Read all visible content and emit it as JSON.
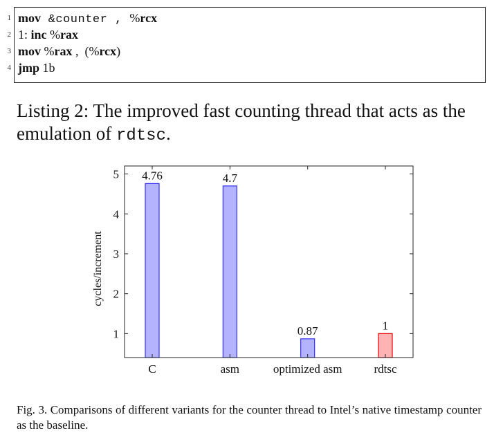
{
  "listing": {
    "lines": [
      {
        "num": "1",
        "parts": [
          {
            "text": "mov",
            "style": "kw"
          },
          {
            "text": " &counter , ",
            "style": "mono-light"
          },
          {
            "text": "%",
            "style": "plain"
          },
          {
            "text": "rcx",
            "style": "kw"
          }
        ]
      },
      {
        "num": "2",
        "parts": [
          {
            "text": "1: ",
            "style": "plain"
          },
          {
            "text": "inc",
            "style": "kw"
          },
          {
            "text": " %",
            "style": "plain"
          },
          {
            "text": "rax",
            "style": "kw"
          }
        ]
      },
      {
        "num": "3",
        "parts": [
          {
            "text": "mov",
            "style": "kw"
          },
          {
            "text": " %",
            "style": "plain"
          },
          {
            "text": "rax",
            "style": "kw"
          },
          {
            "text": " ,  (%",
            "style": "plain"
          },
          {
            "text": "rcx",
            "style": "kw"
          },
          {
            "text": ")",
            "style": "plain"
          }
        ]
      },
      {
        "num": "4",
        "parts": [
          {
            "text": "jmp",
            "style": "kw"
          },
          {
            "text": " 1b",
            "style": "plain"
          }
        ]
      }
    ],
    "caption_prefix": "Listing 2: The improved fast counting thread that acts as the emulation of ",
    "caption_code": "rdtsc",
    "caption_suffix": "."
  },
  "chart_data": {
    "type": "bar",
    "categories": [
      "C",
      "asm",
      "optimized asm",
      "rdtsc"
    ],
    "values": [
      4.76,
      4.7,
      0.87,
      1
    ],
    "value_labels": [
      "4.76",
      "4.7",
      "0.87",
      "1"
    ],
    "bar_colors": [
      "#b3b3ff",
      "#b3b3ff",
      "#b3b3ff",
      "#ffb3b3"
    ],
    "bar_strokes": [
      "#3333ff",
      "#3333ff",
      "#3333ff",
      "#e60000"
    ],
    "title": "",
    "xlabel": "",
    "ylabel": "cycles/increment",
    "ylim": [
      0.4,
      5.2
    ],
    "yticks": [
      1,
      2,
      3,
      4,
      5
    ],
    "grid": false
  },
  "figure": {
    "caption": "Fig. 3.  Comparisons of different variants for the counter thread to Intel’s native timestamp counter as the baseline."
  }
}
